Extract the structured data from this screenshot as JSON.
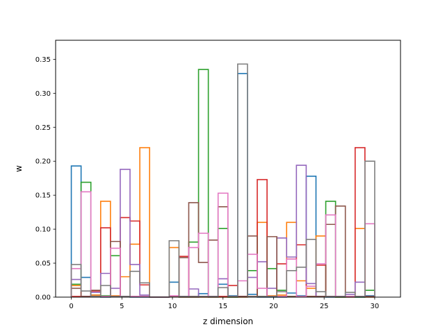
{
  "chart_data": {
    "type": "step-histogram",
    "xlabel": "z dimension",
    "ylabel": "w",
    "xlim": [
      -1.55,
      32.55
    ],
    "ylim": [
      0,
      0.378
    ],
    "bins": 31,
    "xticks": [
      0,
      5,
      10,
      15,
      20,
      25,
      30
    ],
    "xtick_labels": [
      "0",
      "5",
      "10",
      "15",
      "20",
      "25",
      "30"
    ],
    "yticks": [
      0.0,
      0.05,
      0.1,
      0.15,
      0.2,
      0.25,
      0.3,
      0.35
    ],
    "ytick_labels": [
      "0.00",
      "0.05",
      "0.10",
      "0.15",
      "0.20",
      "0.25",
      "0.30",
      "0.35"
    ],
    "grid": false,
    "series": [
      {
        "color": "#1f77b4",
        "values": [
          0.193,
          0.029,
          0.003,
          0,
          0.001,
          0.001,
          0,
          0,
          0,
          0,
          0.022,
          0,
          0,
          0.005,
          0,
          0.019,
          0.002,
          0.329,
          0.004,
          0,
          0,
          0,
          0.006,
          0.002,
          0.178,
          0.001,
          0,
          0,
          0,
          0,
          0.002
        ]
      },
      {
        "color": "#ff7f0e",
        "values": [
          0.017,
          0.001,
          0.003,
          0.141,
          0.002,
          0.03,
          0.078,
          0.22,
          0,
          0,
          0.073,
          0,
          0,
          0,
          0,
          0,
          0,
          0,
          0.001,
          0.11,
          0.002,
          0.003,
          0.11,
          0.024,
          0.013,
          0.09,
          0.001,
          0,
          0,
          0.101,
          0
        ]
      },
      {
        "color": "#2ca02c",
        "values": [
          0.019,
          0.169,
          0.001,
          0.002,
          0.061,
          0.001,
          0.001,
          0.001,
          0,
          0,
          0.001,
          0.001,
          0.081,
          0.335,
          0.001,
          0.101,
          0,
          0.001,
          0.039,
          0.001,
          0.042,
          0.01,
          0.001,
          0.001,
          0.001,
          0.001,
          0.141,
          0,
          0.001,
          0,
          0.01
        ]
      },
      {
        "color": "#d62728",
        "values": [
          0.001,
          0.001,
          0.009,
          0.102,
          0.001,
          0.117,
          0.112,
          0.018,
          0,
          0,
          0.001,
          0.06,
          0.001,
          0.001,
          0.001,
          0.001,
          0.017,
          0.001,
          0.001,
          0.173,
          0.001,
          0.049,
          0.056,
          0.077,
          0.001,
          0.047,
          0.001,
          0.001,
          0.001,
          0.22,
          0.001
        ]
      },
      {
        "color": "#9467bd",
        "values": [
          0.026,
          0.001,
          0.007,
          0.035,
          0.013,
          0.188,
          0.048,
          0.003,
          0,
          0,
          0.001,
          0.001,
          0.012,
          0.001,
          0.001,
          0.027,
          0.001,
          0.001,
          0.029,
          0.052,
          0.013,
          0.087,
          0.059,
          0.194,
          0.02,
          0.001,
          0.001,
          0.001,
          0.004,
          0.022,
          0.001
        ]
      },
      {
        "color": "#8c564b",
        "values": [
          0.013,
          0.001,
          0.01,
          0.001,
          0.082,
          0.001,
          0.001,
          0.001,
          0,
          0,
          0.001,
          0.058,
          0.139,
          0.051,
          0.084,
          0.133,
          0.001,
          0.001,
          0.09,
          0.001,
          0.089,
          0.001,
          0.001,
          0.001,
          0.001,
          0.001,
          0.107,
          0.134,
          0.001,
          0.001,
          0.001
        ]
      },
      {
        "color": "#e377c2",
        "values": [
          0.042,
          0.155,
          0.001,
          0.001,
          0.072,
          0.001,
          0.001,
          0.001,
          0,
          0,
          0.002,
          0.001,
          0.073,
          0.094,
          0.001,
          0.153,
          0.001,
          0.024,
          0.063,
          0.013,
          0.001,
          0.001,
          0.056,
          0.001,
          0.016,
          0.049,
          0.121,
          0.001,
          0.001,
          0.001,
          0.108
        ]
      },
      {
        "color": "#7f7f7f",
        "values": [
          0.048,
          0.009,
          0.001,
          0.017,
          0.001,
          0.001,
          0.038,
          0.021,
          0,
          0,
          0.083,
          0.001,
          0.001,
          0.001,
          0.001,
          0.014,
          0.001,
          0.343,
          0.001,
          0.001,
          0.001,
          0.008,
          0.039,
          0.044,
          0.085,
          0.008,
          0.001,
          0.001,
          0.007,
          0.001,
          0.2
        ]
      }
    ]
  }
}
